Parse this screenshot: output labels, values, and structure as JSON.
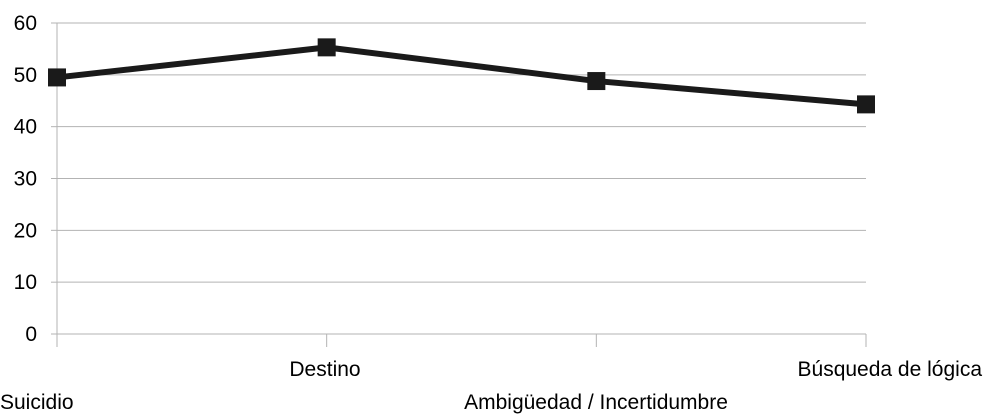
{
  "chart_data": {
    "type": "line",
    "categories": [
      "Suicidio",
      "Destino",
      "Ambigüedad / Incertidumbre",
      "Búsqueda de lógica"
    ],
    "series": [
      {
        "values": [
          49.5,
          55.3,
          48.8,
          44.3
        ]
      }
    ],
    "yticks": [
      "0",
      "10",
      "20",
      "30",
      "40",
      "50",
      "60"
    ],
    "ylim": [
      0,
      60
    ],
    "grid": true,
    "legend": "none",
    "line_color": "#1a1a1a",
    "grid_color": "#b3b3b3",
    "marker": "square"
  }
}
